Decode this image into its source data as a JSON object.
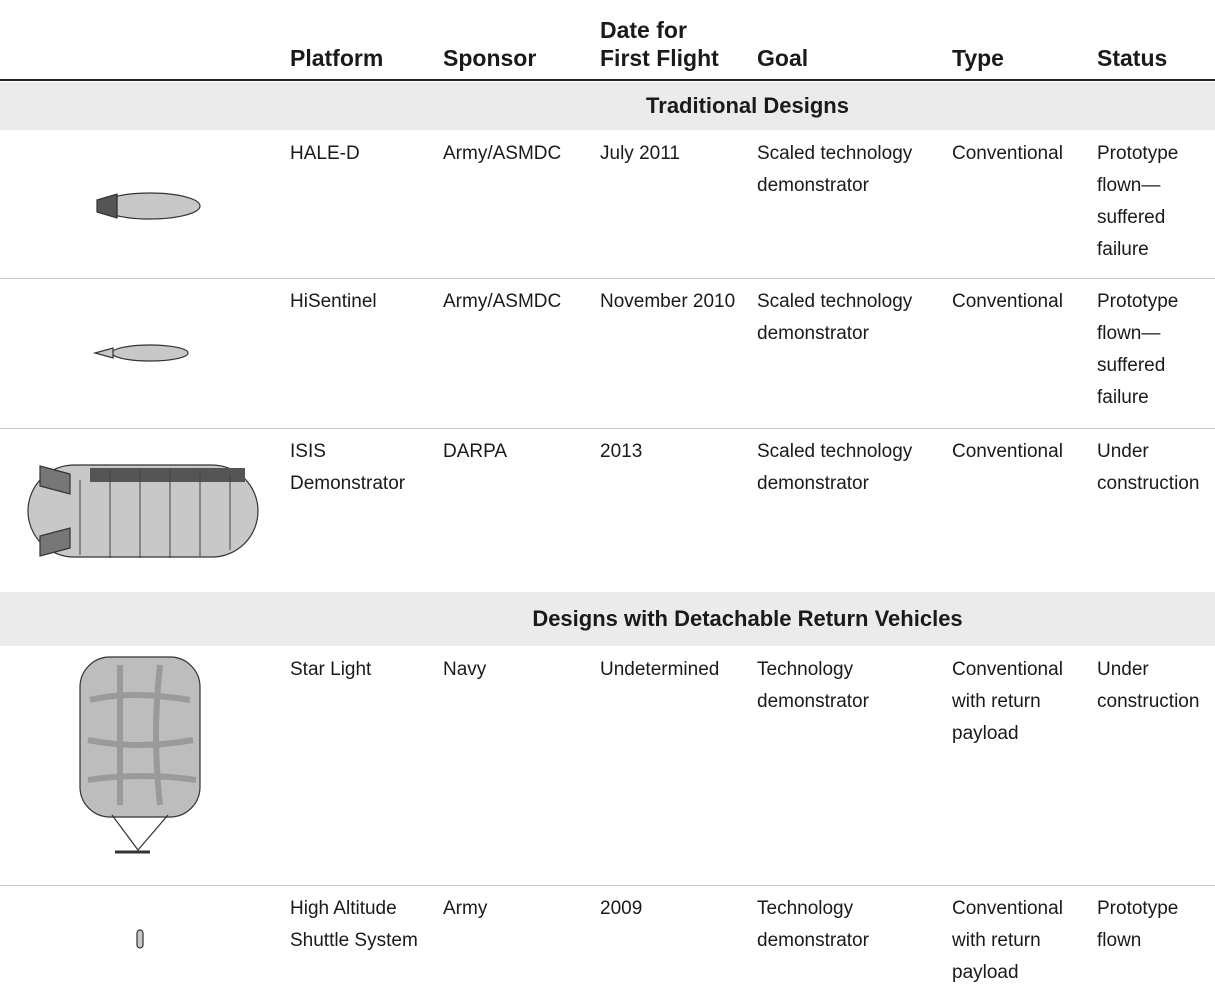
{
  "header": {
    "columns": [
      [
        "Platform"
      ],
      [
        "Sponsor"
      ],
      [
        "Date for",
        "First Flight"
      ],
      [
        "Goal"
      ],
      [
        "Type"
      ],
      [
        "Status"
      ]
    ]
  },
  "sections": [
    {
      "title": "Traditional Designs",
      "rows": [
        [
          "HALE-D",
          "Army/ASMDC",
          "July 2011",
          "Scaled technology demonstrator",
          "Conventional",
          "Prototype flown—suffered failure"
        ],
        [
          "HiSentinel",
          "Army/ASMDC",
          "November 2010",
          "Scaled technology demonstrator",
          "Conventional",
          "Prototype flown—suffered failure"
        ],
        [
          "ISIS Demonstrator",
          "DARPA",
          "2013",
          "Scaled technology demonstrator",
          "Conventional",
          "Under construction"
        ]
      ]
    },
    {
      "title": "Designs with Detachable Return Vehicles",
      "rows": [
        [
          "Star Light",
          "Navy",
          "Undetermined",
          "Technology demonstrator",
          "Conventional with return payload",
          "Under construction"
        ],
        [
          "High Altitude Shuttle System",
          "Army",
          "2009",
          "Technology demonstrator",
          "Conventional with return payload",
          "Prototype flown"
        ]
      ]
    }
  ]
}
